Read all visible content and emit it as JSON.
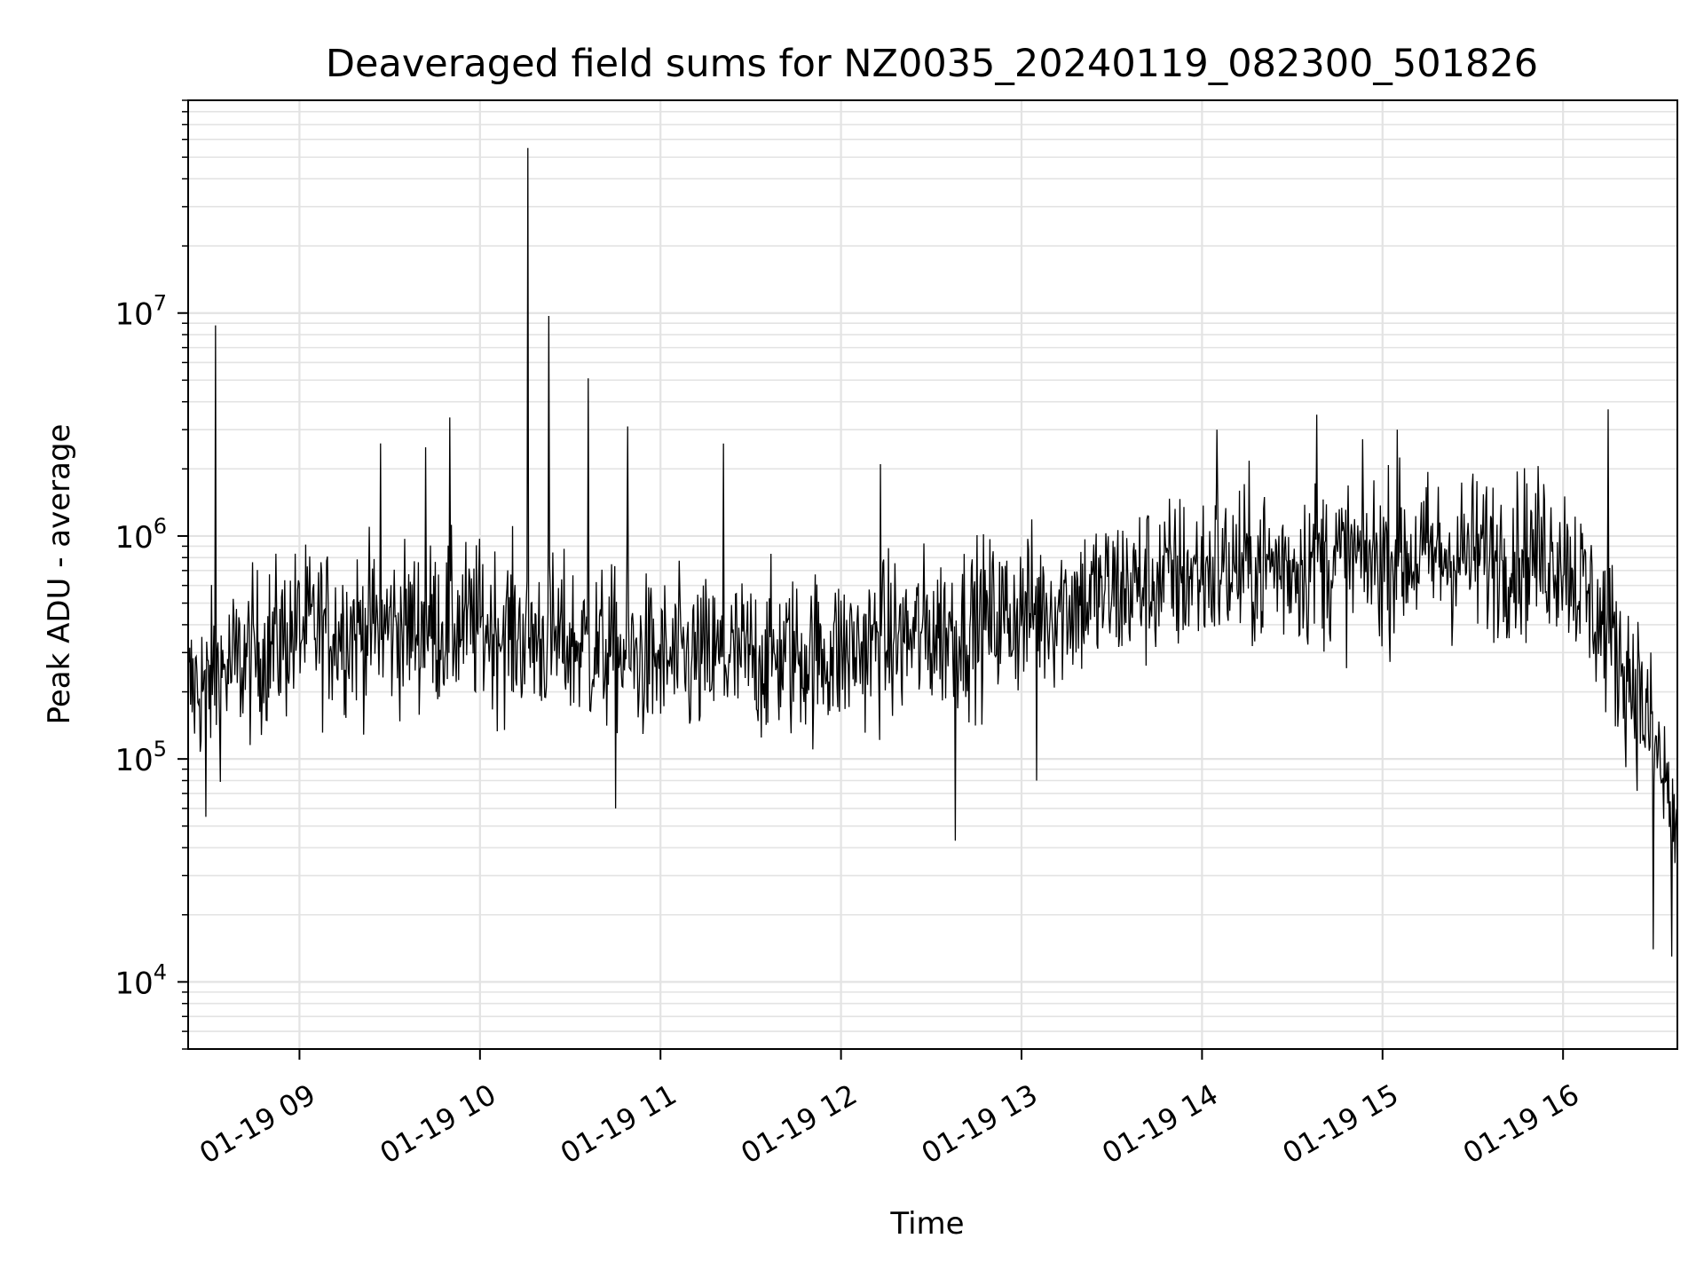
{
  "chart_data": {
    "type": "line",
    "title": "Deaveraged field sums for NZ0035_20240119_082300_501826",
    "xlabel": "Time",
    "ylabel": "Peak ADU - average",
    "yscale": "log",
    "xlim": [
      "2024-01-19 08:23",
      "2024-01-19 16:38"
    ],
    "ylim": [
      5000,
      90000000
    ],
    "x_ticks": [
      "01-19 09",
      "01-19 10",
      "01-19 11",
      "01-19 12",
      "01-19 13",
      "01-19 14",
      "01-19 15",
      "01-19 16"
    ],
    "y_ticks": [
      {
        "value": 10000,
        "base": "10",
        "exp": "4"
      },
      {
        "value": 100000,
        "base": "10",
        "exp": "5"
      },
      {
        "value": 1000000,
        "base": "10",
        "exp": "6"
      },
      {
        "value": 10000000,
        "base": "10",
        "exp": "7"
      }
    ],
    "grid": true,
    "line_color": "#000000",
    "grid_color": "#e3e3e3",
    "series_envelope": {
      "description_values_in_ADU": true,
      "time": [
        "08:23",
        "09:00",
        "10:00",
        "11:00",
        "12:00",
        "13:00",
        "14:00",
        "15:00",
        "16:00",
        "16:25",
        "16:38"
      ],
      "median": [
        200000,
        380000,
        400000,
        270000,
        300000,
        450000,
        700000,
        800000,
        850000,
        200000,
        50000
      ]
    },
    "spikes": [
      {
        "time": "08:32",
        "value": 8800000
      },
      {
        "time": "09:27",
        "value": 2600000
      },
      {
        "time": "09:42",
        "value": 2500000
      },
      {
        "time": "10:16",
        "value": 55000000
      },
      {
        "time": "10:23",
        "value": 9700000
      },
      {
        "time": "10:36",
        "value": 5100000
      },
      {
        "time": "09:50",
        "value": 3400000
      },
      {
        "time": "10:49",
        "value": 3100000
      },
      {
        "time": "11:21",
        "value": 2600000
      },
      {
        "time": "12:13",
        "value": 2100000
      },
      {
        "time": "14:05",
        "value": 3000000
      },
      {
        "time": "14:38",
        "value": 3500000
      },
      {
        "time": "15:05",
        "value": 3000000
      },
      {
        "time": "16:15",
        "value": 3700000
      },
      {
        "time": "08:29",
        "value": 55000
      },
      {
        "time": "10:45",
        "value": 60000
      },
      {
        "time": "12:38",
        "value": 43000
      },
      {
        "time": "13:05",
        "value": 80000
      },
      {
        "time": "16:30",
        "value": 14000
      },
      {
        "time": "16:36",
        "value": 13000
      }
    ]
  }
}
